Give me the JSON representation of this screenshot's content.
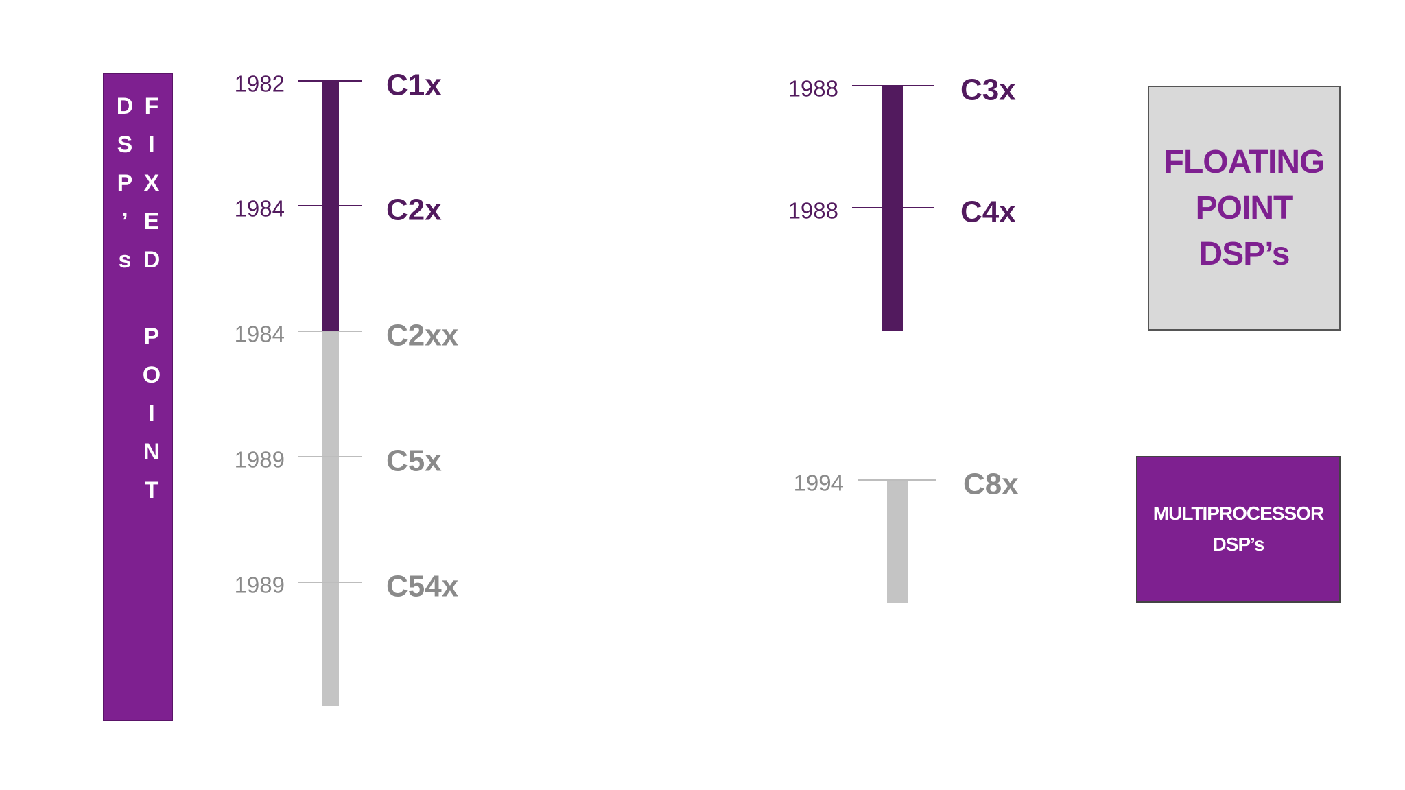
{
  "sidebar": {
    "label": "FIXED POINT DSP’s"
  },
  "timelines": [
    {
      "entries": [
        {
          "year": "1982",
          "name": "C1x"
        },
        {
          "year": "1984",
          "name": "C2x"
        },
        {
          "year": "1984",
          "name": "C2xx"
        },
        {
          "year": "1989",
          "name": "C5x"
        },
        {
          "year": "1989",
          "name": "C54x"
        }
      ]
    },
    {
      "entries": [
        {
          "year": "1988",
          "name": "C3x"
        },
        {
          "year": "1988",
          "name": "C4x"
        }
      ]
    },
    {
      "entries": [
        {
          "year": "1994",
          "name": "C8x"
        }
      ]
    }
  ],
  "boxes": [
    {
      "label": "FLOATING POINT DSP’s"
    },
    {
      "label": "MULTIPROCESSOR DSP’s"
    }
  ]
}
